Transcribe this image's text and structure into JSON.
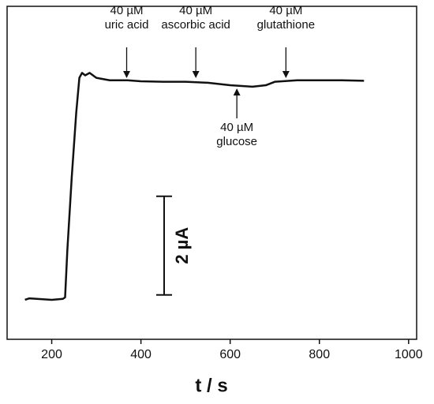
{
  "chart_data": {
    "type": "line",
    "xlabel": "t / s",
    "x": [
      140,
      150,
      200,
      225,
      230,
      235,
      245,
      255,
      262,
      268,
      275,
      285,
      300,
      330,
      370,
      400,
      450,
      500,
      550,
      600,
      650,
      680,
      700,
      750,
      800,
      850,
      900
    ],
    "series": [
      {
        "color": "#111111",
        "values": [
          0,
          0.03,
          0,
          0.02,
          0.05,
          1,
          2.5,
          3.8,
          4.5,
          4.6,
          4.55,
          4.6,
          4.5,
          4.45,
          4.45,
          4.43,
          4.42,
          4.42,
          4.4,
          4.35,
          4.32,
          4.35,
          4.42,
          4.45,
          4.45,
          4.45,
          4.44
        ]
      }
    ],
    "xlim": [
      100,
      1018
    ],
    "ylim": [
      -0.8,
      5.95
    ],
    "xticks": [
      200,
      400,
      600,
      800,
      1000
    ],
    "scale_bar": {
      "label": "2 µA",
      "start": 0.1,
      "length": 2
    },
    "annotations": [
      {
        "lines": [
          "40 µM",
          "uric acid"
        ],
        "x": 368,
        "direction": "down"
      },
      {
        "lines": [
          "40 µM",
          "ascorbic acid"
        ],
        "x": 523,
        "direction": "down"
      },
      {
        "lines": [
          "40 µM",
          "glucose"
        ],
        "x": 615,
        "direction": "up"
      },
      {
        "lines": [
          "40 µM",
          "glutathione"
        ],
        "x": 725,
        "direction": "down"
      }
    ]
  }
}
